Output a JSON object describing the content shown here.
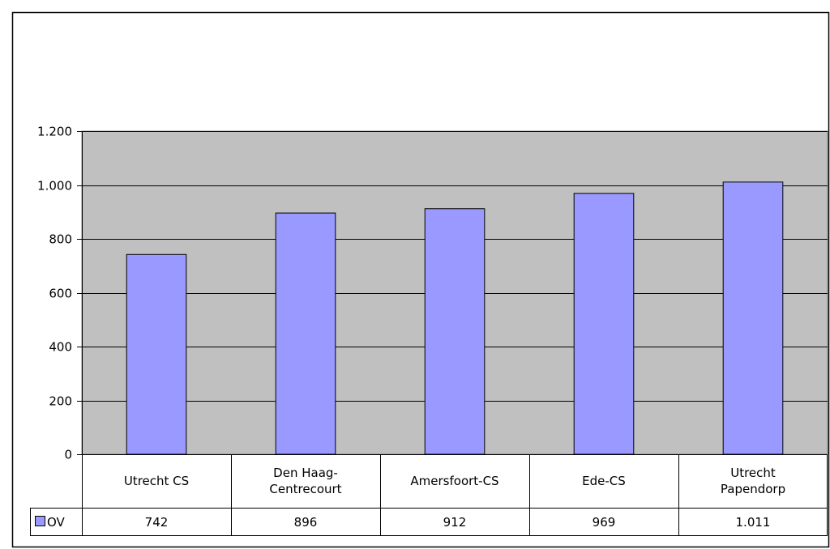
{
  "chart_data": {
    "type": "bar",
    "categories": [
      [
        "Utrecht CS"
      ],
      [
        "Den Haag-",
        "Centrecourt"
      ],
      [
        "Amersfoort-CS"
      ],
      [
        "Ede-CS"
      ],
      [
        "Utrecht",
        "Papendorp"
      ]
    ],
    "series": [
      {
        "name": "OV",
        "values": [
          742,
          896,
          912,
          969,
          1011
        ],
        "value_labels": [
          "742",
          "896",
          "912",
          "969",
          "1.011"
        ],
        "color": "#9999ff"
      }
    ],
    "yticks": [
      0,
      200,
      400,
      600,
      800,
      1000,
      1200
    ],
    "ytick_labels": [
      "0",
      "200",
      "400",
      "600",
      "800",
      "1.000",
      "1.200"
    ],
    "ylim": [
      0,
      1200
    ],
    "grid": true,
    "legend": "data-table",
    "plot_background": "#c0c0c0",
    "gridline_color": "#000000"
  }
}
